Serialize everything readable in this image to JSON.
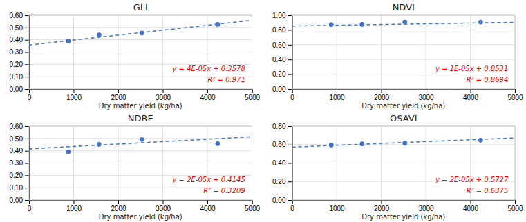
{
  "chart_data": [
    {
      "type": "scatter",
      "title": "GLI",
      "x_label": "Dry matter yield (kg/ha)",
      "grid": true,
      "marker": "circle",
      "xlim": [
        0,
        5000
      ],
      "xticks": [
        0,
        1000,
        2000,
        3000,
        4000,
        5000
      ],
      "ylim": [
        0.0,
        0.6
      ],
      "yticks": [
        {
          "value": 0.0,
          "label": "0.00"
        },
        {
          "value": 0.1,
          "label": "0.10"
        },
        {
          "value": 0.2,
          "label": "0.20"
        },
        {
          "value": 0.3,
          "label": "0.30"
        },
        {
          "value": 0.4,
          "label": "0.40"
        },
        {
          "value": 0.5,
          "label": "0.50"
        },
        {
          "value": 0.6,
          "label": "0.60"
        }
      ],
      "series": [
        {
          "type": "scatter",
          "color": "#4472C4",
          "marker": "circle",
          "x": [
            880,
            1570,
            2530,
            4230
          ],
          "values": [
            0.39,
            0.44,
            0.455,
            0.525
          ]
        },
        {
          "type": "line",
          "color": "#4472C4",
          "line_style": "dashed",
          "x": [
            0,
            5000
          ],
          "values": [
            0.3578,
            0.5578
          ]
        }
      ],
      "annotations": [
        {
          "text": "y = 4E-05x + 0.3578",
          "color": "#FF0000"
        },
        {
          "text": "R² = 0.971",
          "color": "#FF0000"
        }
      ]
    },
    {
      "type": "scatter",
      "title": "NDVI",
      "x_label": "Dry matter yield (kg/ha)",
      "grid": true,
      "marker": "circle",
      "xlim": [
        0,
        5000
      ],
      "xticks": [
        0,
        1000,
        2000,
        3000,
        4000,
        5000
      ],
      "ylim": [
        0.0,
        1.0
      ],
      "yticks": [
        {
          "value": 0.0,
          "label": "0.00"
        },
        {
          "value": 0.2,
          "label": "0.20"
        },
        {
          "value": 0.4,
          "label": "0.40"
        },
        {
          "value": 0.6,
          "label": "0.60"
        },
        {
          "value": 0.8,
          "label": "0.80"
        },
        {
          "value": 1.0,
          "label": "1.00"
        }
      ],
      "series": [
        {
          "type": "scatter",
          "color": "#4472C4",
          "marker": "circle",
          "x": [
            880,
            1570,
            2530,
            4230
          ],
          "values": [
            0.872,
            0.875,
            0.906,
            0.906
          ]
        },
        {
          "type": "line",
          "color": "#4472C4",
          "line_style": "dashed",
          "x": [
            0,
            5000
          ],
          "values": [
            0.8531,
            0.9031
          ]
        }
      ],
      "annotations": [
        {
          "text": "y = 1E-05x + 0.8531",
          "color": "#FF0000"
        },
        {
          "text": "R² = 0.8694",
          "color": "#FF0000"
        }
      ]
    },
    {
      "type": "scatter",
      "title": "NDRE",
      "x_label": "Dry matter yield (kg/ha)",
      "grid": true,
      "marker": "circle",
      "xlim": [
        0,
        5000
      ],
      "xticks": [
        0,
        1000,
        2000,
        3000,
        4000,
        5000
      ],
      "ylim": [
        0.0,
        0.6
      ],
      "yticks": [
        {
          "value": 0.0,
          "label": "0.00"
        },
        {
          "value": 0.1,
          "label": "0.10"
        },
        {
          "value": 0.2,
          "label": "0.20"
        },
        {
          "value": 0.3,
          "label": "0.30"
        },
        {
          "value": 0.4,
          "label": "0.40"
        },
        {
          "value": 0.5,
          "label": "0.50"
        },
        {
          "value": 0.6,
          "label": "0.60"
        }
      ],
      "series": [
        {
          "type": "scatter",
          "color": "#4472C4",
          "marker": "circle",
          "x": [
            880,
            1570,
            2530,
            4230
          ],
          "values": [
            0.392,
            0.452,
            0.492,
            0.458
          ]
        },
        {
          "type": "line",
          "color": "#4472C4",
          "line_style": "dashed",
          "x": [
            0,
            5000
          ],
          "values": [
            0.4145,
            0.5145
          ]
        }
      ],
      "annotations": [
        {
          "text": "y = 2E-05x + 0.4145",
          "color": "#FF0000"
        },
        {
          "text": "R² = 0.3209",
          "color": "#FF0000"
        }
      ]
    },
    {
      "type": "scatter",
      "title": "OSAVI",
      "x_label": "Dry matter yield (kg/ha)",
      "grid": true,
      "marker": "circle",
      "xlim": [
        0,
        5000
      ],
      "xticks": [
        0,
        1000,
        2000,
        3000,
        4000,
        5000
      ],
      "ylim": [
        0.0,
        0.8
      ],
      "yticks": [
        {
          "value": 0.0,
          "label": "0.00"
        },
        {
          "value": 0.2,
          "label": "0.20"
        },
        {
          "value": 0.4,
          "label": "0.40"
        },
        {
          "value": 0.6,
          "label": "0.60"
        },
        {
          "value": 0.8,
          "label": "0.80"
        }
      ],
      "series": [
        {
          "type": "scatter",
          "color": "#4472C4",
          "marker": "circle",
          "x": [
            880,
            1570,
            2530,
            4230
          ],
          "values": [
            0.595,
            0.608,
            0.615,
            0.648
          ]
        },
        {
          "type": "line",
          "color": "#4472C4",
          "line_style": "dashed",
          "x": [
            0,
            5000
          ],
          "values": [
            0.5727,
            0.6727
          ]
        }
      ],
      "annotations": [
        {
          "text": "y = 2E-05x + 0.5727",
          "color": "#FF0000"
        },
        {
          "text": "R² = 0.6375",
          "color": "#FF0000"
        }
      ]
    }
  ]
}
